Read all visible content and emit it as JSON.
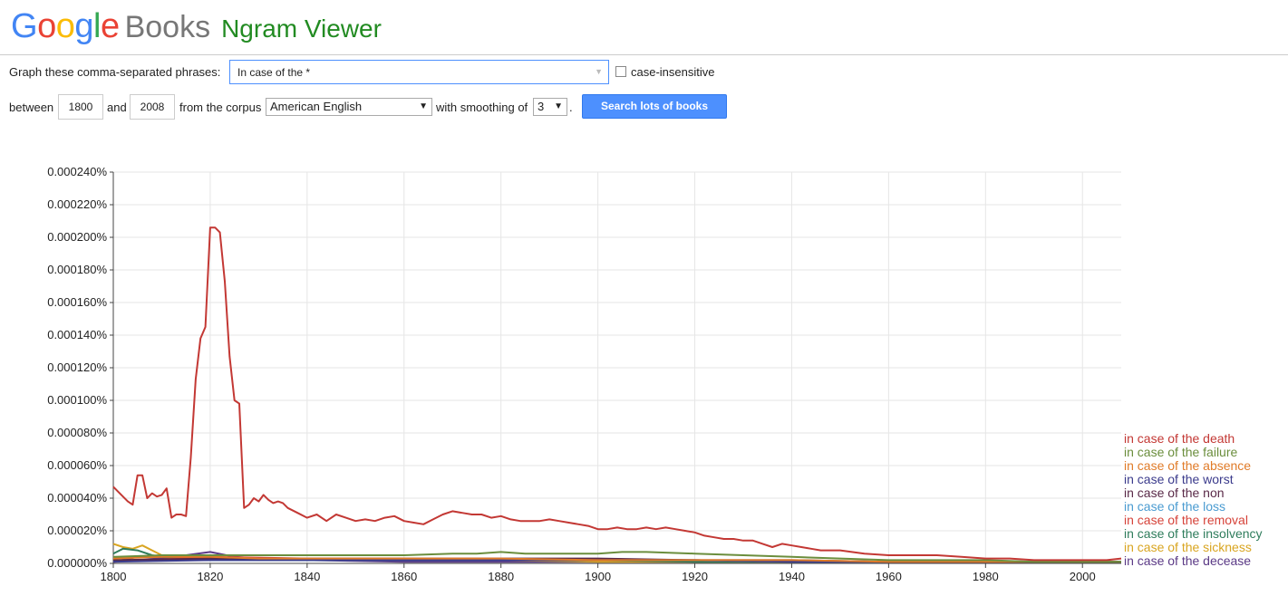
{
  "logo": {
    "google": "Google",
    "books": "Books",
    "ngram": "Ngram Viewer",
    "google_colors": [
      "#4285f4",
      "#ea4335",
      "#fbbc05",
      "#4285f4",
      "#34a853",
      "#ea4335"
    ]
  },
  "form": {
    "phrases_label": "Graph these comma-separated phrases:",
    "phrase_value": "In case of the *",
    "case_insensitive_label": "case-insensitive",
    "between_label": "between",
    "start_year": "1800",
    "and_label": "and",
    "end_year": "2008",
    "corpus_label": "from the corpus",
    "corpus_value": "American English",
    "smoothing_label": "with smoothing of",
    "smoothing_value": "3",
    "period": ".",
    "search_button": "Search lots of books"
  },
  "chart_data": {
    "type": "line",
    "xlim": [
      1800,
      2008
    ],
    "ylim": [
      0,
      0.00024
    ],
    "x_ticks": [
      1800,
      1820,
      1840,
      1860,
      1880,
      1900,
      1920,
      1940,
      1960,
      1980,
      2000
    ],
    "x_tick_labels": [
      "1800",
      "1820",
      "1840",
      "1860",
      "1880",
      "1900",
      "1920",
      "1940",
      "1960",
      "1980",
      "2000"
    ],
    "y_ticks": [
      0,
      2e-05,
      4e-05,
      6e-05,
      8e-05,
      0.0001,
      0.00012,
      0.00014,
      0.00016,
      0.00018,
      0.0002,
      0.00022,
      0.00024
    ],
    "y_tick_labels": [
      "0.000000%",
      "0.000020%",
      "0.000040%",
      "0.000060%",
      "0.000080%",
      "0.000100%",
      "0.000120%",
      "0.000140%",
      "0.000160%",
      "0.000180%",
      "0.000200%",
      "0.000220%",
      "0.000240%"
    ],
    "grid": true,
    "legend": "right",
    "series": [
      {
        "name": "in case of the death",
        "color": "#c33834",
        "x": [
          1800,
          1801,
          1803,
          1804,
          1805,
          1806,
          1807,
          1808,
          1809,
          1810,
          1811,
          1812,
          1813,
          1814,
          1815,
          1816,
          1817,
          1818,
          1819,
          1820,
          1821,
          1822,
          1823,
          1824,
          1825,
          1826,
          1827,
          1828,
          1829,
          1830,
          1831,
          1832,
          1833,
          1834,
          1835,
          1836,
          1838,
          1840,
          1842,
          1844,
          1846,
          1848,
          1850,
          1852,
          1854,
          1856,
          1858,
          1860,
          1862,
          1864,
          1866,
          1868,
          1870,
          1872,
          1874,
          1876,
          1878,
          1880,
          1882,
          1884,
          1886,
          1888,
          1890,
          1892,
          1894,
          1896,
          1898,
          1900,
          1902,
          1904,
          1906,
          1908,
          1910,
          1912,
          1914,
          1916,
          1918,
          1920,
          1922,
          1924,
          1926,
          1928,
          1930,
          1932,
          1934,
          1936,
          1938,
          1940,
          1942,
          1944,
          1946,
          1948,
          1950,
          1955,
          1960,
          1965,
          1970,
          1975,
          1980,
          1985,
          1990,
          1995,
          2000,
          2005,
          2008
        ],
        "y": [
          4.7e-05,
          4.4e-05,
          3.8e-05,
          3.6e-05,
          5.4e-05,
          5.4e-05,
          4e-05,
          4.3e-05,
          4.1e-05,
          4.2e-05,
          4.6e-05,
          2.8e-05,
          3e-05,
          3e-05,
          2.9e-05,
          6.5e-05,
          0.000113,
          0.000138,
          0.000145,
          0.000206,
          0.000206,
          0.000203,
          0.000173,
          0.000127,
          0.0001,
          9.8e-05,
          3.4e-05,
          3.6e-05,
          4e-05,
          3.8e-05,
          4.2e-05,
          3.9e-05,
          3.7e-05,
          3.8e-05,
          3.7e-05,
          3.4e-05,
          3.1e-05,
          2.8e-05,
          3e-05,
          2.6e-05,
          3e-05,
          2.8e-05,
          2.6e-05,
          2.7e-05,
          2.6e-05,
          2.8e-05,
          2.9e-05,
          2.6e-05,
          2.5e-05,
          2.4e-05,
          2.7e-05,
          3e-05,
          3.2e-05,
          3.1e-05,
          3e-05,
          3e-05,
          2.8e-05,
          2.9e-05,
          2.7e-05,
          2.6e-05,
          2.6e-05,
          2.6e-05,
          2.7e-05,
          2.6e-05,
          2.5e-05,
          2.4e-05,
          2.3e-05,
          2.1e-05,
          2.1e-05,
          2.2e-05,
          2.1e-05,
          2.1e-05,
          2.2e-05,
          2.1e-05,
          2.2e-05,
          2.1e-05,
          2e-05,
          1.9e-05,
          1.7e-05,
          1.6e-05,
          1.5e-05,
          1.5e-05,
          1.4e-05,
          1.4e-05,
          1.2e-05,
          1e-05,
          1.2e-05,
          1.1e-05,
          1e-05,
          9e-06,
          8e-06,
          8e-06,
          8e-06,
          6e-06,
          5e-06,
          5e-06,
          5e-06,
          4e-06,
          3e-06,
          3e-06,
          2e-06,
          2e-06,
          2e-06,
          2e-06,
          3e-06
        ]
      },
      {
        "name": "in case of the failure",
        "color": "#6b8e3d",
        "x": [
          1800,
          1810,
          1820,
          1830,
          1840,
          1850,
          1860,
          1870,
          1875,
          1880,
          1885,
          1890,
          1895,
          1900,
          1905,
          1910,
          1920,
          1930,
          1940,
          1950,
          1960,
          1970,
          1980,
          1990,
          2000,
          2008
        ],
        "y": [
          4e-06,
          5e-06,
          5e-06,
          5e-06,
          5e-06,
          5e-06,
          5e-06,
          6e-06,
          6e-06,
          7e-06,
          6e-06,
          6e-06,
          6e-06,
          6e-06,
          7e-06,
          7e-06,
          6e-06,
          5e-06,
          4e-06,
          3e-06,
          2e-06,
          2e-06,
          2e-06,
          1e-06,
          1e-06,
          1e-06
        ]
      },
      {
        "name": "in case of the absence",
        "color": "#e07b28",
        "x": [
          1800,
          1810,
          1820,
          1830,
          1840,
          1860,
          1880,
          1900,
          1920,
          1940,
          1960,
          1980,
          2000,
          2008
        ],
        "y": [
          3e-06,
          4e-06,
          4e-06,
          3e-06,
          3e-06,
          3e-06,
          3e-06,
          2e-06,
          2e-06,
          2e-06,
          1e-06,
          1e-06,
          1e-06,
          1e-06
        ]
      },
      {
        "name": "in case of the worst",
        "color": "#3b3b8c",
        "x": [
          1800,
          1820,
          1840,
          1860,
          1880,
          1900,
          1920,
          1940,
          1960,
          1980,
          2000,
          2008
        ],
        "y": [
          1e-06,
          2e-06,
          2e-06,
          2e-06,
          2e-06,
          2e-06,
          2e-06,
          1e-06,
          1e-06,
          1e-06,
          1e-06,
          1e-06
        ]
      },
      {
        "name": "in case of the non",
        "color": "#5a2a48",
        "x": [
          1800,
          1820,
          1840,
          1860,
          1880,
          1900,
          1920,
          1940,
          1960,
          1980,
          2000,
          2008
        ],
        "y": [
          2e-06,
          3e-06,
          3e-06,
          3e-06,
          3e-06,
          3e-06,
          2e-06,
          2e-06,
          1e-06,
          1e-06,
          1e-06,
          1e-06
        ]
      },
      {
        "name": "in case of the loss",
        "color": "#4a9bd1",
        "x": [
          1800,
          1820,
          1840,
          1860,
          1880,
          1900,
          1920,
          1940,
          1960,
          1980,
          2000,
          2008
        ],
        "y": [
          2e-06,
          2e-06,
          2e-06,
          2e-06,
          2e-06,
          2e-06,
          2e-06,
          1e-06,
          1e-06,
          1e-06,
          1e-06,
          1e-06
        ]
      },
      {
        "name": "in case of the removal",
        "color": "#d6433a",
        "x": [
          1800,
          1820,
          1840,
          1860,
          1880,
          1900,
          1920,
          1940,
          1960,
          1980,
          2000,
          2008
        ],
        "y": [
          1e-06,
          4e-06,
          3e-06,
          3e-06,
          2e-06,
          2e-06,
          2e-06,
          1e-06,
          1e-06,
          1e-06,
          1e-06,
          1e-06
        ]
      },
      {
        "name": "in case of the insolvency",
        "color": "#2f7d5c",
        "x": [
          1800,
          1802,
          1805,
          1808,
          1810,
          1820,
          1840,
          1860,
          1880,
          1900,
          1920,
          1940,
          1960,
          1980,
          2000,
          2008
        ],
        "y": [
          6e-06,
          9e-06,
          8e-06,
          5e-06,
          4e-06,
          3e-06,
          2e-06,
          2e-06,
          2e-06,
          2e-06,
          1e-06,
          1e-06,
          1e-06,
          1e-06,
          1e-06,
          1e-06
        ]
      },
      {
        "name": "in case of the sickness",
        "color": "#d9a521",
        "x": [
          1800,
          1802,
          1804,
          1806,
          1808,
          1810,
          1812,
          1815,
          1820,
          1830,
          1840,
          1860,
          1880,
          1900,
          1920,
          1940,
          1960,
          1980,
          2000,
          2008
        ],
        "y": [
          1.2e-05,
          1e-05,
          9e-06,
          1.1e-05,
          8e-06,
          5e-06,
          4e-06,
          4e-06,
          3e-06,
          2e-06,
          2e-06,
          2e-06,
          2e-06,
          1e-06,
          1e-06,
          1e-06,
          1e-06,
          1e-06,
          1e-06,
          1e-06
        ]
      },
      {
        "name": "in case of the decease",
        "color": "#5b3a86",
        "x": [
          1800,
          1805,
          1810,
          1815,
          1820,
          1825,
          1830,
          1840,
          1860,
          1880,
          1900,
          1920,
          1940,
          1960,
          1980,
          2000,
          2008
        ],
        "y": [
          1e-06,
          4e-06,
          3e-06,
          5e-06,
          7e-06,
          4e-06,
          3e-06,
          2e-06,
          1e-06,
          1e-06,
          1e-06,
          1e-06,
          1e-06,
          1e-06,
          1e-06,
          1e-06,
          1e-06
        ]
      }
    ]
  }
}
